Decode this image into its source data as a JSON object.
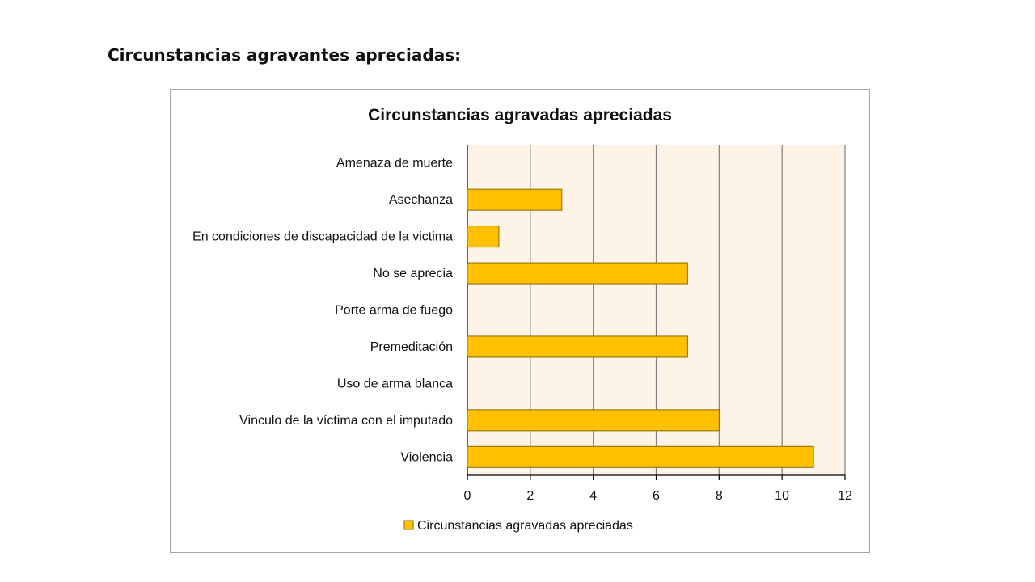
{
  "page": {
    "heading": "Circunstancias agravantes apreciadas:"
  },
  "chart_data": {
    "type": "bar",
    "orientation": "horizontal",
    "title": "Circunstancias agravadas apreciadas",
    "categories": [
      "Amenaza de muerte",
      "Asechanza",
      "En condiciones de discapacidad de la victima",
      "No se aprecia",
      "Porte arma de fuego",
      "Premeditación",
      "Uso de arma blanca",
      "Vinculo de la víctima con el imputado",
      "Violencia"
    ],
    "series": [
      {
        "name": "Circunstancias agravadas apreciadas",
        "values": [
          0,
          3,
          1,
          7,
          0,
          7,
          0,
          8,
          11
        ]
      }
    ],
    "xlim": [
      0,
      12
    ],
    "xticks": [
      0,
      2,
      4,
      6,
      8,
      10,
      12
    ],
    "xlabel": "",
    "ylabel": "",
    "grid": "vertical",
    "legend_position": "bottom",
    "colors": {
      "bar_fill": "#FFC000",
      "bar_stroke": "#8C6A00",
      "plot_background": "#FDF3E7",
      "gridline": "#7F7F7F"
    }
  }
}
